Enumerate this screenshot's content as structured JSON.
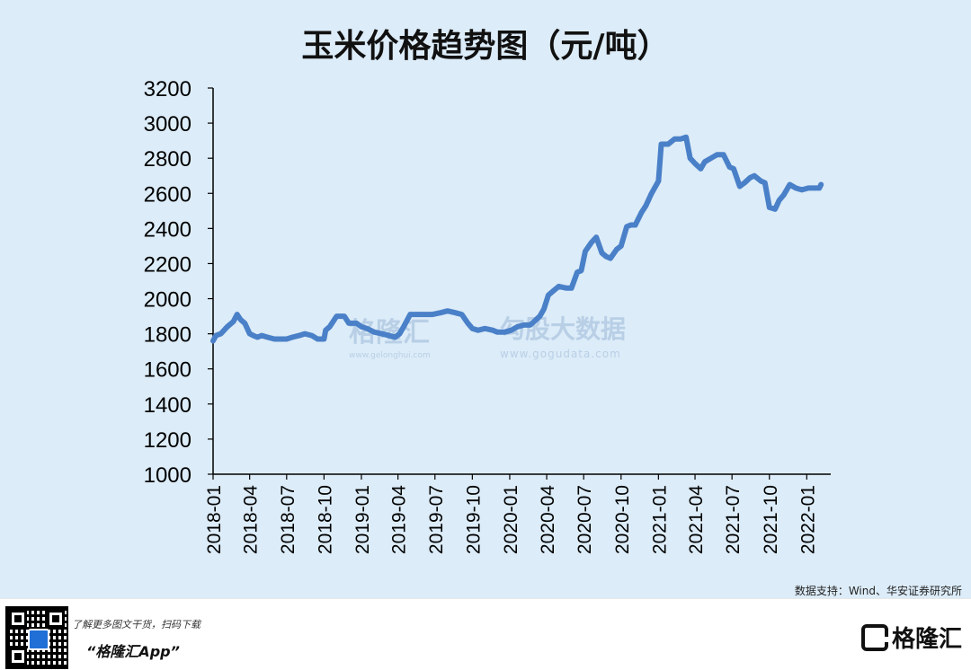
{
  "title": "玉米价格趋势图（元/吨）",
  "source": "数据支持：Wind、华安证券研究所",
  "watermark": {
    "brand_cn": "格隆汇",
    "brand_url": "www.gelonghui.com",
    "data_cn": "勾股大数据",
    "data_url": "www.gogudata.com"
  },
  "footer": {
    "tagline": "了解更多图文干货，扫码下载",
    "app_name": "“格隆汇App”",
    "brand": "格隆汇"
  },
  "colors": {
    "line": "#4a80c8",
    "background": "#dcecf8"
  },
  "chart_data": {
    "type": "line",
    "title": "玉米价格趋势图（元/吨）",
    "xlabel": "",
    "ylabel": "",
    "ylim": [
      1000,
      3200
    ],
    "yticks": [
      1000,
      1200,
      1400,
      1600,
      1800,
      2000,
      2200,
      2400,
      2600,
      2800,
      3000,
      3200
    ],
    "xticks": [
      "2018-01",
      "2018-04",
      "2018-07",
      "2018-10",
      "2019-01",
      "2019-04",
      "2019-07",
      "2019-10",
      "2020-01",
      "2020-04",
      "2020-07",
      "2020-10",
      "2021-01",
      "2021-04",
      "2021-07",
      "2021-10",
      "2022-01"
    ],
    "grid": false,
    "legend": "none",
    "series": [
      {
        "name": "",
        "x": [
          "2018-01-01",
          "2018-01-08",
          "2018-01-20",
          "2018-02-05",
          "2018-02-20",
          "2018-03-01",
          "2018-03-10",
          "2018-03-20",
          "2018-04-01",
          "2018-04-10",
          "2018-04-20",
          "2018-05-01",
          "2018-05-15",
          "2018-06-01",
          "2018-06-15",
          "2018-07-01",
          "2018-07-15",
          "2018-08-01",
          "2018-08-15",
          "2018-09-01",
          "2018-09-15",
          "2018-10-01",
          "2018-10-05",
          "2018-10-15",
          "2018-11-01",
          "2018-11-20",
          "2018-12-01",
          "2018-12-20",
          "2019-01-01",
          "2019-01-15",
          "2019-02-01",
          "2019-02-20",
          "2019-03-10",
          "2019-03-25",
          "2019-04-05",
          "2019-04-15",
          "2019-05-01",
          "2019-05-20",
          "2019-06-10",
          "2019-06-25",
          "2019-07-15",
          "2019-08-01",
          "2019-08-20",
          "2019-09-05",
          "2019-09-20",
          "2019-10-01",
          "2019-10-15",
          "2019-11-01",
          "2019-11-20",
          "2019-12-01",
          "2019-12-20",
          "2020-01-05",
          "2020-01-20",
          "2020-02-05",
          "2020-02-20",
          "2020-03-01",
          "2020-03-15",
          "2020-03-25",
          "2020-04-05",
          "2020-04-20",
          "2020-05-01",
          "2020-05-20",
          "2020-06-01",
          "2020-06-15",
          "2020-06-25",
          "2020-07-05",
          "2020-07-20",
          "2020-08-01",
          "2020-08-15",
          "2020-08-25",
          "2020-09-05",
          "2020-09-20",
          "2020-10-01",
          "2020-10-15",
          "2020-10-25",
          "2020-11-05",
          "2020-11-20",
          "2020-12-01",
          "2020-12-15",
          "2021-01-01",
          "2021-01-08",
          "2021-01-25",
          "2021-02-10",
          "2021-02-25",
          "2021-03-10",
          "2021-03-20",
          "2021-04-01",
          "2021-04-15",
          "2021-04-25",
          "2021-05-10",
          "2021-05-25",
          "2021-06-10",
          "2021-06-25",
          "2021-07-05",
          "2021-07-20",
          "2021-08-01",
          "2021-08-15",
          "2021-08-25",
          "2021-09-10",
          "2021-09-20",
          "2021-10-01",
          "2021-10-15",
          "2021-10-25",
          "2021-11-05",
          "2021-11-20",
          "2021-12-05",
          "2021-12-20",
          "2022-01-05",
          "2022-01-20",
          "2022-02-01",
          "2022-02-05"
        ],
        "y": [
          1760,
          1790,
          1800,
          1840,
          1870,
          1910,
          1880,
          1860,
          1800,
          1790,
          1780,
          1790,
          1780,
          1770,
          1770,
          1770,
          1780,
          1790,
          1800,
          1790,
          1770,
          1770,
          1820,
          1840,
          1900,
          1900,
          1860,
          1860,
          1840,
          1830,
          1810,
          1800,
          1790,
          1780,
          1800,
          1840,
          1910,
          1910,
          1910,
          1910,
          1920,
          1930,
          1920,
          1910,
          1860,
          1830,
          1820,
          1830,
          1820,
          1810,
          1810,
          1820,
          1840,
          1850,
          1850,
          1870,
          1900,
          1940,
          2020,
          2050,
          2070,
          2060,
          2060,
          2150,
          2160,
          2270,
          2320,
          2350,
          2260,
          2240,
          2230,
          2280,
          2300,
          2410,
          2420,
          2420,
          2490,
          2530,
          2600,
          2670,
          2880,
          2880,
          2910,
          2910,
          2920,
          2800,
          2770,
          2740,
          2780,
          2800,
          2820,
          2820,
          2750,
          2740,
          2640,
          2660,
          2690,
          2700,
          2670,
          2660,
          2520,
          2510,
          2560,
          2590,
          2650,
          2630,
          2620,
          2630,
          2630,
          2630,
          2650
        ]
      }
    ]
  }
}
